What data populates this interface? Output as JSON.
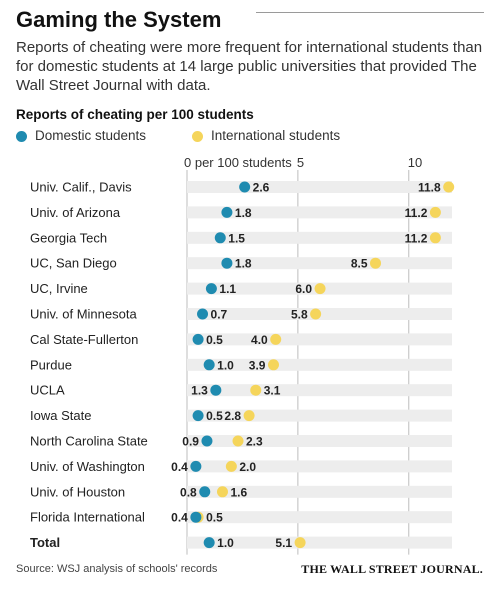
{
  "header": {
    "title": "Gaming the System",
    "subtitle": "Reports of cheating were more frequent for international students than for domestic students at 14 large public universities that provided The Wall Street Journal with data."
  },
  "footer": {
    "source": "Source: WSJ analysis of schools' records",
    "brand": "THE WALL STREET JOURNAL."
  },
  "colors": {
    "domestic": "#1f8bb0",
    "international": "#f5d55b",
    "bar": "#ededed",
    "grid": "#bdbdbd"
  },
  "chart_data": {
    "type": "dot",
    "title": "Reports of cheating per 100 students",
    "legend": {
      "placement": "top-left"
    },
    "x_axis": {
      "ticks": [
        0,
        5,
        10
      ],
      "tick_labels": [
        "0 per 100 students",
        "5",
        "10"
      ],
      "xlim": [
        0,
        12.4
      ],
      "grid": true
    },
    "categories": [
      "Univ. Calif., Davis",
      "Univ. of Arizona",
      "Georgia Tech",
      "UC, San Diego",
      "UC, Irvine",
      "Univ. of Minnesota",
      "Cal State-Fullerton",
      "Purdue",
      "UCLA",
      "Iowa State",
      "North Carolina State",
      "Univ. of Washington",
      "Univ. of Houston",
      "Florida International",
      "Total"
    ],
    "series": [
      {
        "name": "Domestic students",
        "color": "#1f8bb0",
        "values": [
          2.6,
          1.8,
          1.5,
          1.8,
          1.1,
          0.7,
          0.5,
          1.0,
          1.3,
          0.5,
          0.9,
          0.4,
          0.8,
          0.4,
          1.0
        ]
      },
      {
        "name": "International students",
        "color": "#f5d55b",
        "values": [
          11.8,
          11.2,
          11.2,
          8.5,
          6.0,
          5.8,
          4.0,
          3.9,
          3.1,
          2.8,
          2.3,
          2.0,
          1.6,
          0.5,
          5.1
        ]
      }
    ],
    "data_labels": {
      "domestic": [
        "2.6",
        "1.8",
        "1.5",
        "1.8",
        "1.1",
        "0.7",
        "0.5",
        "1.0",
        "1.3",
        "0.5",
        "0.9",
        "0.4",
        "0.8",
        "0.4",
        "1.0"
      ],
      "international": [
        "11.8",
        "11.2",
        "11.2",
        "8.5",
        "6.0",
        "5.8",
        "4.0",
        "3.9",
        "3.1",
        "2.8",
        "2.3",
        "2.0",
        "1.6",
        "0.5",
        "5.1"
      ]
    },
    "bold_rows": [
      "Total"
    ]
  }
}
